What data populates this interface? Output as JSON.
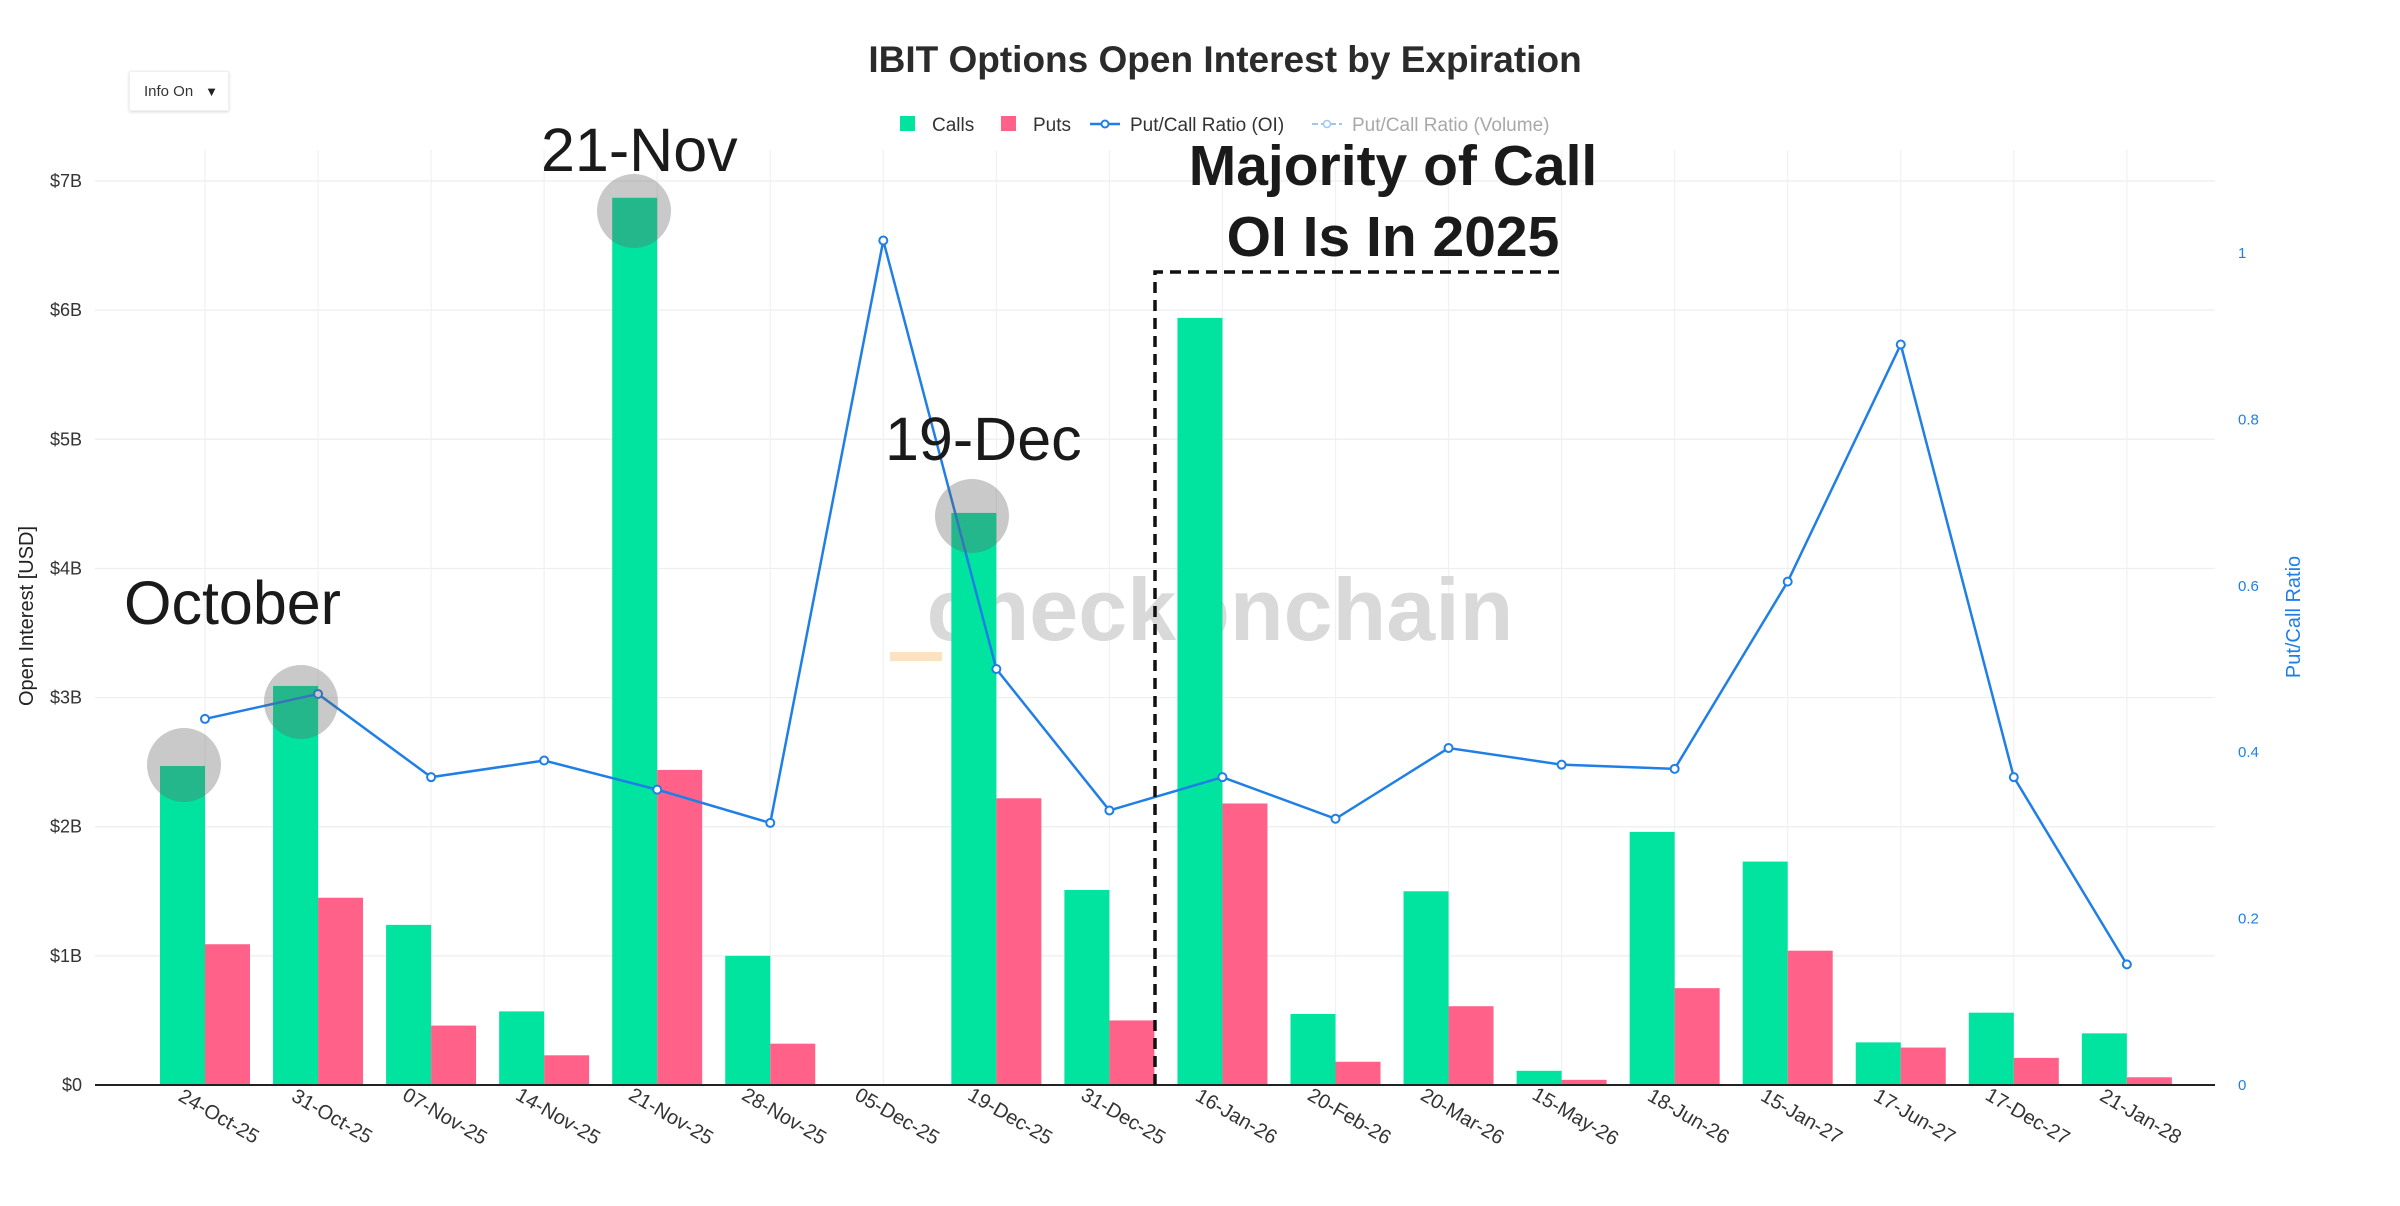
{
  "controls": {
    "info_toggle_label": "Info On",
    "dropdown_icon": "triangle-down-icon"
  },
  "colors": {
    "calls": "#00e4a0",
    "puts": "#ff6189",
    "ratio_oi": "#1f7fe6",
    "ratio_vol": "#9cc8f2",
    "dashed": "#111111"
  },
  "annotations": {
    "october": "October",
    "nov21": "21-Nov",
    "dec19": "19-Dec",
    "majority_line1": "Majority of Call",
    "majority_line2": "OI Is In 2025",
    "watermark": "checkonchain"
  },
  "chart_data": {
    "type": "bar",
    "title": "IBIT Options Open Interest by Expiration",
    "ylabel": "Open Interest [USD]",
    "y2label": "Put/Call Ratio",
    "ylim": [
      0,
      7000000000
    ],
    "y2lim": [
      0,
      1.1
    ],
    "yticks": [
      "$0",
      "$1B",
      "$2B",
      "$3B",
      "$4B",
      "$5B",
      "$6B",
      "$7B"
    ],
    "y2ticks": [
      "0",
      "0.2",
      "0.4",
      "0.6",
      "0.8",
      "1"
    ],
    "y2tick_values": [
      0,
      0.2,
      0.4,
      0.6,
      0.8,
      1
    ],
    "legend": [
      "Calls",
      "Puts",
      "Put/Call Ratio (OI)",
      "Put/Call Ratio (Volume)"
    ],
    "categories": [
      "24-Oct-25",
      "31-Oct-25",
      "07-Nov-25",
      "14-Nov-25",
      "21-Nov-25",
      "28-Nov-25",
      "05-Dec-25",
      "19-Dec-25",
      "31-Dec-25",
      "16-Jan-26",
      "20-Feb-26",
      "20-Mar-26",
      "15-May-26",
      "18-Jun-26",
      "15-Jan-27",
      "17-Jun-27",
      "17-Dec-27",
      "21-Jan-28"
    ],
    "series": [
      {
        "name": "Calls",
        "values": [
          2.47,
          3.09,
          1.24,
          0.57,
          6.87,
          1.0,
          0.0,
          4.43,
          1.51,
          5.94,
          0.55,
          1.5,
          0.11,
          1.96,
          1.73,
          0.33,
          0.56,
          0.4
        ]
      },
      {
        "name": "Puts",
        "values": [
          1.09,
          1.45,
          0.46,
          0.23,
          2.44,
          0.32,
          0.0,
          2.22,
          0.5,
          2.18,
          0.18,
          0.61,
          0.04,
          0.75,
          1.04,
          0.29,
          0.21,
          0.06
        ]
      },
      {
        "name": "Put/Call Ratio (OI)",
        "values": [
          0.44,
          0.47,
          0.37,
          0.39,
          0.355,
          0.315,
          1.015,
          0.5,
          0.33,
          0.37,
          0.32,
          0.405,
          0.385,
          0.38,
          0.605,
          0.89,
          0.37,
          0.145
        ]
      }
    ],
    "value_unit": "billions USD"
  }
}
